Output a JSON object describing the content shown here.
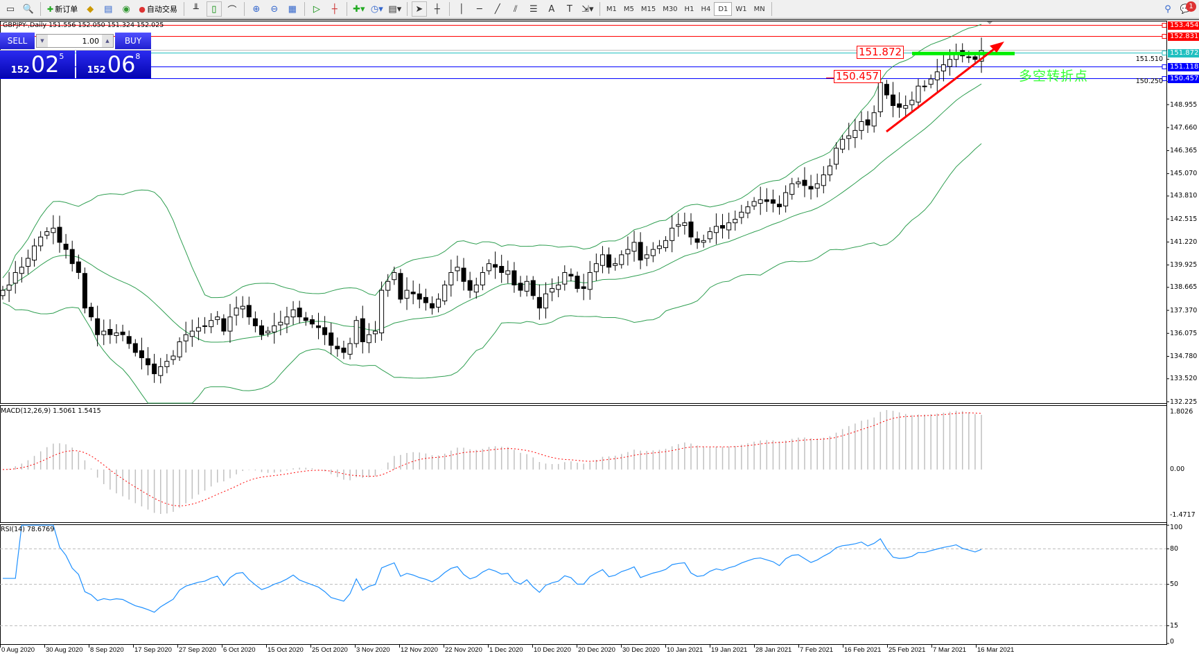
{
  "toolbar": {
    "new_order": "新订单",
    "auto_trading": "自动交易",
    "timeframes": [
      "M1",
      "M5",
      "M15",
      "M30",
      "H1",
      "H4",
      "D1",
      "W1",
      "MN"
    ],
    "active_timeframe": "D1",
    "notification_count": "1"
  },
  "chart": {
    "title": "GBPJPY-,Daily  151.556 152.050 151.324 152.025",
    "symbol": "GBPJPY-",
    "period": "Daily"
  },
  "trade_panel": {
    "sell": "SELL",
    "buy": "BUY",
    "lots": "1.00",
    "sell_price": {
      "small": "152",
      "big": "02",
      "pip": "5"
    },
    "buy_price": {
      "small": "152",
      "big": "06",
      "pip": "8"
    }
  },
  "price_axis": {
    "ticks": [
      "148.955",
      "147.660",
      "146.365",
      "145.070",
      "143.810",
      "142.515",
      "141.220",
      "139.925",
      "138.665",
      "137.370",
      "136.075",
      "134.780",
      "133.520",
      "132.225",
      "151.510",
      "150.250"
    ],
    "range": [
      132.225,
      153.454
    ]
  },
  "levels": [
    {
      "value": 153.454,
      "label": "153.454",
      "color": "#ff0000"
    },
    {
      "value": 152.831,
      "label": "152.831",
      "color": "#ff0000"
    },
    {
      "value": 151.872,
      "label": "151.872",
      "color": "#20c0c0"
    },
    {
      "value": 151.118,
      "label": "151.118",
      "color": "#0000ff"
    },
    {
      "value": 150.457,
      "label": "150.457",
      "color": "#0000ff"
    }
  ],
  "annotations": {
    "box1": "151.872",
    "box2": "150.457",
    "note": "多空转折点",
    "note_color": "#33ff33",
    "arrow_color": "#ff0000",
    "green_line_color": "#00ee00"
  },
  "chart_data": {
    "type": "candlestick",
    "closes": [
      138.5,
      138.8,
      139.5,
      139.8,
      140.3,
      141.0,
      141.5,
      141.8,
      142.0,
      141.2,
      140.8,
      140.0,
      139.5,
      137.5,
      137.0,
      136.0,
      136.2,
      136.0,
      136.1,
      136.0,
      135.5,
      135.0,
      134.7,
      134.3,
      133.8,
      134.2,
      134.5,
      134.8,
      135.6,
      136.0,
      136.2,
      136.4,
      136.5,
      136.8,
      137.0,
      136.2,
      137.0,
      137.5,
      137.6,
      137.0,
      136.5,
      136.0,
      136.2,
      136.5,
      136.7,
      137.0,
      137.4,
      137.0,
      136.8,
      136.6,
      136.4,
      136.0,
      135.4,
      135.2,
      135.0,
      135.5,
      136.8,
      135.6,
      136.0,
      136.2,
      138.5,
      139.0,
      139.5,
      138.0,
      138.5,
      138.3,
      138.0,
      137.8,
      137.5,
      138.0,
      138.8,
      139.5,
      139.8,
      139.0,
      138.5,
      138.8,
      139.5,
      140.0,
      139.8,
      139.5,
      139.6,
      138.8,
      138.5,
      139.0,
      138.2,
      137.5,
      138.3,
      138.6,
      138.8,
      139.5,
      139.3,
      138.6,
      138.6,
      139.5,
      140.0,
      140.5,
      139.8,
      140.0,
      140.5,
      140.8,
      141.2,
      140.2,
      140.5,
      140.8,
      141.0,
      141.3,
      142.0,
      142.2,
      142.3,
      141.5,
      141.2,
      141.3,
      141.8,
      142.1,
      142.0,
      142.3,
      142.5,
      142.9,
      143.2,
      143.5,
      143.6,
      143.5,
      143.4,
      143.2,
      144.0,
      144.5,
      144.6,
      144.4,
      144.2,
      144.5,
      145.0,
      145.5,
      146.5,
      147.0,
      147.2,
      147.5,
      148.0,
      147.8,
      148.5,
      150.2,
      149.5,
      148.9,
      148.8,
      148.9,
      149.2,
      150.0,
      150.0,
      150.4,
      150.8,
      151.2,
      151.5,
      151.9,
      151.7,
      151.6,
      151.5,
      152.0
    ],
    "indicators": {
      "bollinger": {
        "period": 20,
        "deviation": 2,
        "color": "#2e9e50"
      }
    },
    "x_tick_labels": [
      "0 Aug 2020",
      "30 Aug 2020",
      "8 Sep 2020",
      "17 Sep 2020",
      "27 Sep 2020",
      "6 Oct 2020",
      "15 Oct 2020",
      "25 Oct 2020",
      "3 Nov 2020",
      "12 Nov 2020",
      "22 Nov 2020",
      "1 Dec 2020",
      "10 Dec 2020",
      "20 Dec 2020",
      "30 Dec 2020",
      "10 Jan 2021",
      "19 Jan 2021",
      "28 Jan 2021",
      "7 Feb 2021",
      "16 Feb 2021",
      "25 Feb 2021",
      "7 Mar 2021",
      "16 Mar 2021"
    ]
  },
  "macd": {
    "title": "MACD(12,26,9) 1.5061 1.5415",
    "ticks": [
      "1.8026",
      "0.00",
      "-1.4717"
    ],
    "range": [
      -1.4717,
      1.8026
    ]
  },
  "rsi": {
    "title": "RSI(14) 78.6769",
    "ticks": [
      "100",
      "80",
      "50",
      "15",
      "0"
    ],
    "levels": [
      80,
      50,
      15
    ]
  }
}
